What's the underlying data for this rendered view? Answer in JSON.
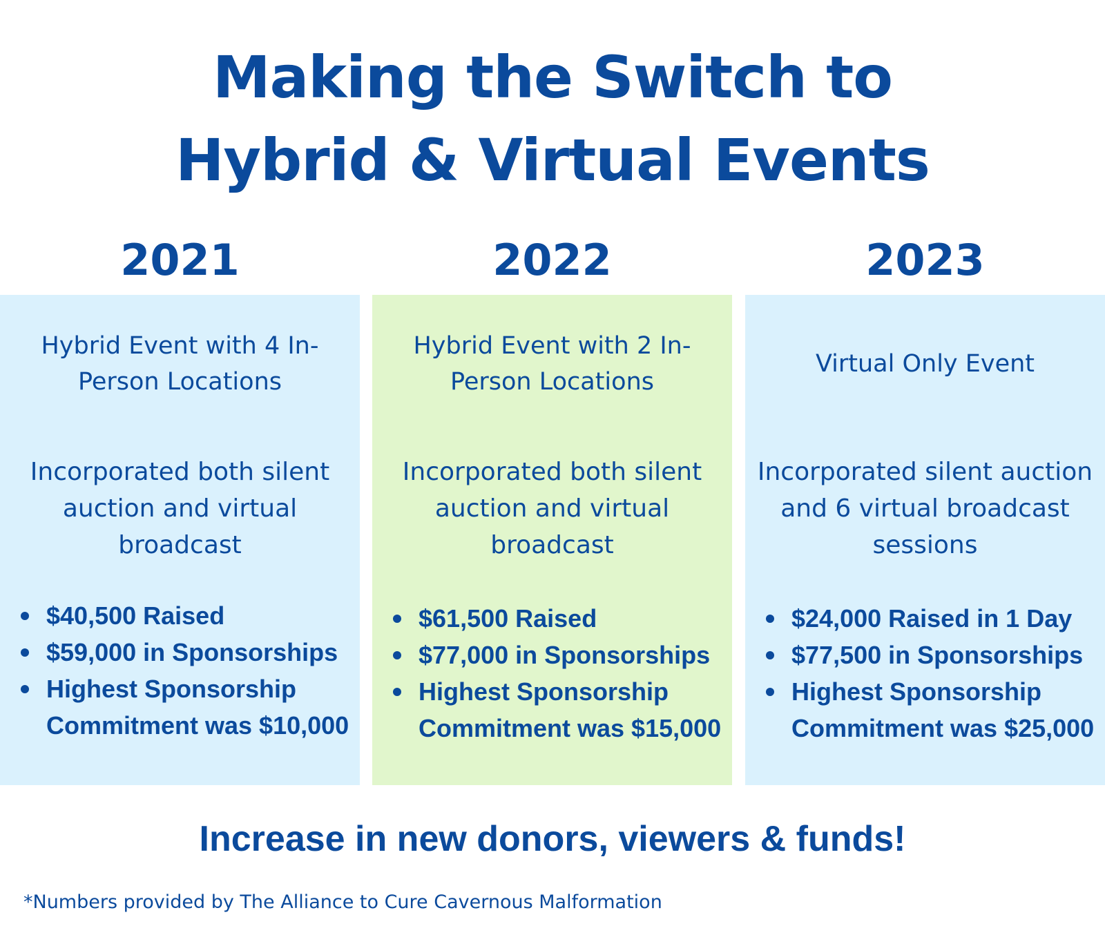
{
  "title": {
    "line1": "Making the Switch to",
    "line2": "Hybrid & Virtual Events"
  },
  "columns": [
    {
      "year": "2021",
      "event_type": "Hybrid Event with 4 In-Person Locations",
      "description": "Incorporated both silent auction and virtual broadcast",
      "stats": [
        "$40,500 Raised",
        "$59,000 in Sponsorships",
        "Highest Sponsorship Commitment was $10,000"
      ],
      "panel_color": "#daf1fd"
    },
    {
      "year": "2022",
      "event_type": "Hybrid Event with 2 In-Person Locations",
      "description": "Incorporated both silent auction and virtual broadcast",
      "stats": [
        "$61,500 Raised",
        "$77,000 in Sponsorships",
        "Highest Sponsorship Commitment was $15,000"
      ],
      "panel_color": "#e1f6cc"
    },
    {
      "year": "2023",
      "event_type": "Virtual Only Event",
      "description": "Incorporated silent auction and 6 virtual broadcast sessions",
      "stats": [
        "$24,000 Raised in 1 Day",
        "$77,500 in Sponsorships",
        "Highest Sponsorship Commitment was $25,000"
      ],
      "panel_color": "#daf1fd"
    }
  ],
  "tagline": "Increase in new donors, viewers & funds!",
  "footnote": "*Numbers provided by The Alliance to Cure Cavernous Malformation",
  "colors": {
    "text": "#0b4a9c",
    "panel_blue": "#daf1fd",
    "panel_green": "#e1f6cc"
  }
}
